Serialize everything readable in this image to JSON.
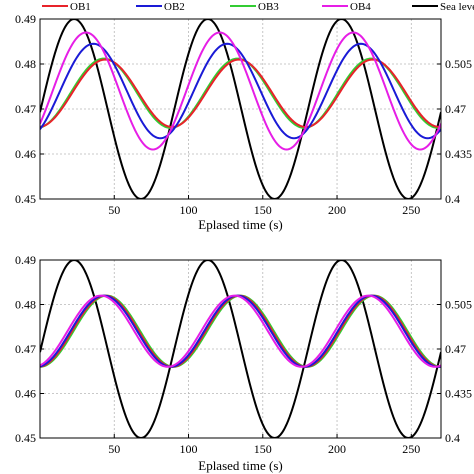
{
  "legend": {
    "entries": [
      {
        "name": "OB1",
        "color": "#e8232a"
      },
      {
        "name": "OB2",
        "color": "#1a1ad6"
      },
      {
        "name": "OB3",
        "color": "#33cc33"
      },
      {
        "name": "OB4",
        "color": "#e61ee6"
      },
      {
        "name": "Sea level",
        "color": "#000000"
      }
    ]
  },
  "chart_data": [
    {
      "type": "line",
      "xlabel": "Eplased time (s)",
      "xlim": [
        0,
        270
      ],
      "ylim": [
        0.45,
        0.49
      ],
      "ylim_right": [
        0.4,
        0.54
      ],
      "x_ticks": [
        "50",
        "100",
        "150",
        "200",
        "250"
      ],
      "y_ticks": [
        "0.45",
        "0.46",
        "0.47",
        "0.48",
        "0.49"
      ],
      "y_ticks_right": [
        "0.4",
        "0.435",
        "0.47",
        "0.505"
      ],
      "grid": true,
      "legend_position": "top",
      "period": 90,
      "series": [
        {
          "name": "OB1",
          "axis": "left",
          "color": "#e8232a",
          "mean": 0.4735,
          "amplitude": 0.0075,
          "peak_time": 44
        },
        {
          "name": "OB2",
          "axis": "left",
          "color": "#1a1ad6",
          "mean": 0.474,
          "amplitude": 0.0105,
          "peak_time": 36
        },
        {
          "name": "OB3",
          "axis": "left",
          "color": "#33cc33",
          "mean": 0.4735,
          "amplitude": 0.0077,
          "peak_time": 43
        },
        {
          "name": "OB4",
          "axis": "left",
          "color": "#e61ee6",
          "mean": 0.474,
          "amplitude": 0.013,
          "peak_time": 31
        },
        {
          "name": "Sea level",
          "axis": "right",
          "color": "#000000",
          "mean": 0.47,
          "amplitude": 0.07,
          "peak_time": 23
        }
      ]
    },
    {
      "type": "line",
      "xlabel": "Eplased time (s)",
      "xlim": [
        0,
        270
      ],
      "ylim": [
        0.45,
        0.49
      ],
      "ylim_right": [
        0.4,
        0.54
      ],
      "x_ticks": [
        "50",
        "100",
        "150",
        "200",
        "250"
      ],
      "y_ticks": [
        "0.45",
        "0.46",
        "0.47",
        "0.48",
        "0.49"
      ],
      "y_ticks_right": [
        "0.4",
        "0.435",
        "0.47",
        "0.505"
      ],
      "grid": true,
      "period": 90,
      "series": [
        {
          "name": "OB1",
          "axis": "left",
          "color": "#e8232a",
          "mean": 0.474,
          "amplitude": 0.008,
          "peak_time": 44
        },
        {
          "name": "OB2",
          "axis": "left",
          "color": "#1a1ad6",
          "mean": 0.474,
          "amplitude": 0.008,
          "peak_time": 43
        },
        {
          "name": "OB3",
          "axis": "left",
          "color": "#33cc33",
          "mean": 0.474,
          "amplitude": 0.008,
          "peak_time": 45
        },
        {
          "name": "OB4",
          "axis": "left",
          "color": "#e61ee6",
          "mean": 0.474,
          "amplitude": 0.008,
          "peak_time": 41
        },
        {
          "name": "Sea level",
          "axis": "right",
          "color": "#000000",
          "mean": 0.47,
          "amplitude": 0.07,
          "peak_time": 23
        }
      ]
    }
  ]
}
